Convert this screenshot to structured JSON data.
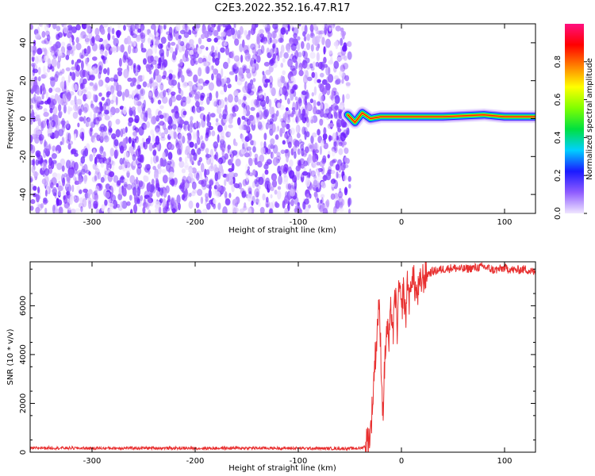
{
  "title": "C2E3.2022.352.16.47.R17",
  "chart_data": [
    {
      "type": "heatmap",
      "xlabel": "Height of straight line (km)",
      "ylabel": "Frequency (Hz)",
      "xlim": [
        -360,
        130
      ],
      "ylim": [
        -50,
        50
      ],
      "xticks": [
        -300,
        -200,
        -100,
        0,
        100
      ],
      "yticks": [
        -40,
        -20,
        0,
        20,
        40
      ],
      "noise_region_x": [
        -360,
        -50
      ],
      "signal_start_x": -52,
      "signal_line": [
        {
          "x": -52,
          "y": 2
        },
        {
          "x": -45,
          "y": -2
        },
        {
          "x": -38,
          "y": 3
        },
        {
          "x": -30,
          "y": 0
        },
        {
          "x": -20,
          "y": 1
        },
        {
          "x": 0,
          "y": 1
        },
        {
          "x": 40,
          "y": 1
        },
        {
          "x": 80,
          "y": 2
        },
        {
          "x": 100,
          "y": 1
        },
        {
          "x": 130,
          "y": 1
        }
      ],
      "colorbar": {
        "label": "Normalized spectral amplitude",
        "range": [
          0.0,
          1.0
        ],
        "ticks": [
          0.0,
          0.2,
          0.4,
          0.6,
          0.8
        ],
        "colors": [
          "#f0e6ff",
          "#8f5cff",
          "#1a1aff",
          "#00d0ff",
          "#00e040",
          "#80ff00",
          "#ffff00",
          "#ff8000",
          "#ff0000",
          "#ff1080"
        ]
      }
    },
    {
      "type": "line",
      "xlabel": "Height of straight line (km)",
      "ylabel": "SNR (10 * v/v)",
      "xlim": [
        -360,
        130
      ],
      "ylim": [
        0,
        7800
      ],
      "xticks": [
        -300,
        -200,
        -100,
        0,
        100
      ],
      "yticks": [
        0,
        2000,
        4000,
        6000
      ],
      "color": "#e83030",
      "series": [
        {
          "x": [
            -360,
            -350,
            -300,
            -250,
            -200,
            -150,
            -100,
            -60,
            -40,
            -35,
            -30,
            -28,
            -26,
            -24,
            -22,
            -20,
            -18,
            -16,
            -14,
            -12,
            -10,
            -8,
            -6,
            -4,
            -2,
            0,
            2,
            4,
            6,
            8,
            10,
            15,
            20,
            25,
            30,
            40,
            50,
            60,
            70,
            80,
            90,
            100,
            110,
            120,
            130
          ],
          "y": [
            150,
            180,
            160,
            170,
            160,
            170,
            160,
            150,
            160,
            250,
            800,
            2000,
            3600,
            4600,
            6200,
            4200,
            1500,
            3800,
            5200,
            4400,
            6000,
            4800,
            6600,
            5000,
            7000,
            5600,
            6800,
            5400,
            7200,
            6000,
            7400,
            6400,
            7100,
            7300,
            7400,
            7500,
            7550,
            7500,
            7550,
            7600,
            7450,
            7550,
            7450,
            7500,
            7350
          ]
        }
      ]
    }
  ]
}
